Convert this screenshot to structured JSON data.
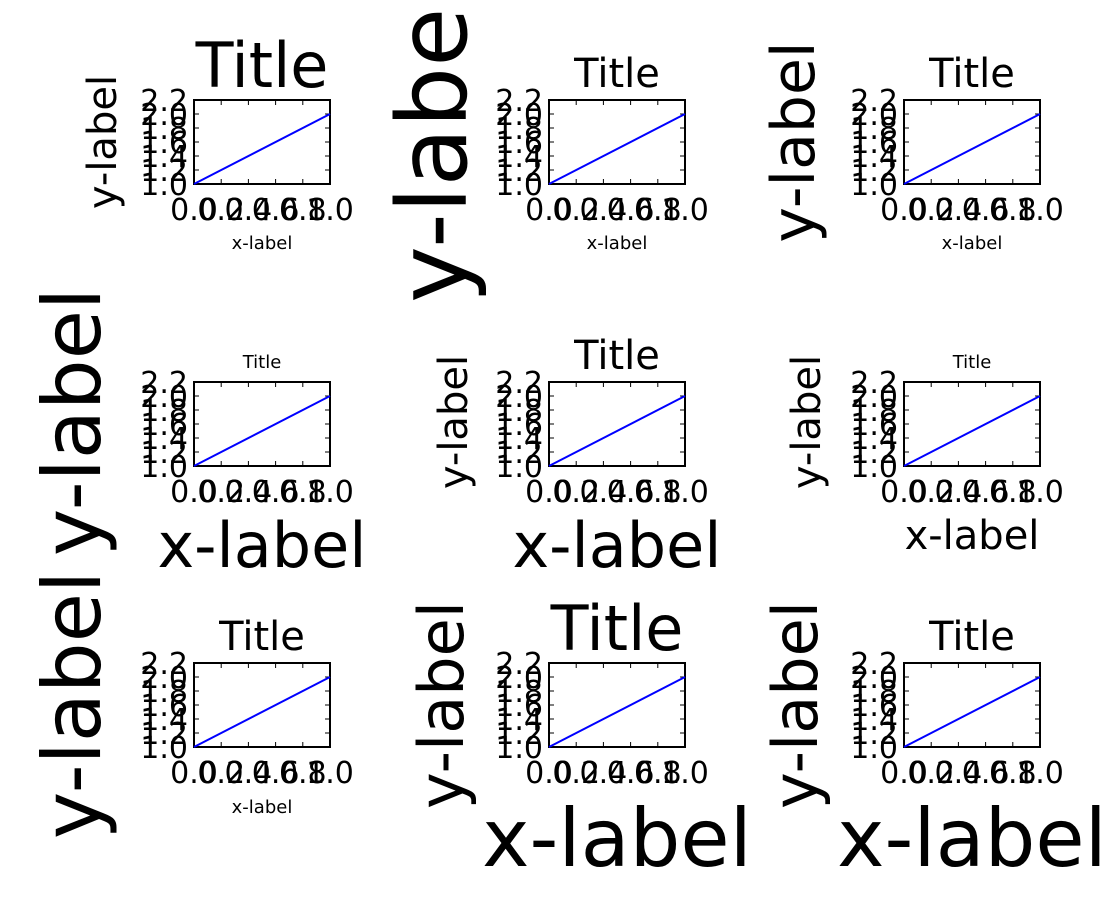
{
  "chart_data": [
    {
      "type": "line",
      "title": "Title",
      "xlabel": "x-label",
      "ylabel": "y-label",
      "xlim": [
        0.0,
        1.0
      ],
      "ylim": [
        1.0,
        2.2
      ],
      "xticks": [
        "0.0",
        "0.2",
        "0.4",
        "0.6",
        "0.8",
        "1.0"
      ],
      "yticks": [
        "1.0",
        "1.2",
        "1.4",
        "1.6",
        "1.8",
        "2.0",
        "2.2"
      ],
      "series": [
        {
          "x": [
            0,
            1
          ],
          "y": [
            1,
            2
          ],
          "color": "#0000ff"
        }
      ],
      "grid": false
    },
    {
      "type": "line",
      "title": "Title",
      "xlabel": "x-label",
      "ylabel": "y-label",
      "xlim": [
        0.0,
        1.0
      ],
      "ylim": [
        1.0,
        2.2
      ],
      "xticks": [
        "0.0",
        "0.2",
        "0.4",
        "0.6",
        "0.8",
        "1.0"
      ],
      "yticks": [
        "1.0",
        "1.2",
        "1.4",
        "1.6",
        "1.8",
        "2.0",
        "2.2"
      ],
      "series": [
        {
          "x": [
            0,
            1
          ],
          "y": [
            1,
            2
          ],
          "color": "#0000ff"
        }
      ],
      "grid": false
    },
    {
      "type": "line",
      "title": "Title",
      "xlabel": "x-label",
      "ylabel": "y-label",
      "xlim": [
        0.0,
        1.0
      ],
      "ylim": [
        1.0,
        2.2
      ],
      "xticks": [
        "0.0",
        "0.2",
        "0.4",
        "0.6",
        "0.8",
        "1.0"
      ],
      "yticks": [
        "1.0",
        "1.2",
        "1.4",
        "1.6",
        "1.8",
        "2.0",
        "2.2"
      ],
      "series": [
        {
          "x": [
            0,
            1
          ],
          "y": [
            1,
            2
          ],
          "color": "#0000ff"
        }
      ],
      "grid": false
    },
    {
      "type": "line",
      "title": "Title",
      "xlabel": "x-label",
      "ylabel": "y-label",
      "xlim": [
        0.0,
        1.0
      ],
      "ylim": [
        1.0,
        2.2
      ],
      "xticks": [
        "0.0",
        "0.2",
        "0.4",
        "0.6",
        "0.8",
        "1.0"
      ],
      "yticks": [
        "1.0",
        "1.2",
        "1.4",
        "1.6",
        "1.8",
        "2.0",
        "2.2"
      ],
      "series": [
        {
          "x": [
            0,
            1
          ],
          "y": [
            1,
            2
          ],
          "color": "#0000ff"
        }
      ],
      "grid": false
    },
    {
      "type": "line",
      "title": "Title",
      "xlabel": "x-label",
      "ylabel": "y-label",
      "xlim": [
        0.0,
        1.0
      ],
      "ylim": [
        1.0,
        2.2
      ],
      "xticks": [
        "0.0",
        "0.2",
        "0.4",
        "0.6",
        "0.8",
        "1.0"
      ],
      "yticks": [
        "1.0",
        "1.2",
        "1.4",
        "1.6",
        "1.8",
        "2.0",
        "2.2"
      ],
      "series": [
        {
          "x": [
            0,
            1
          ],
          "y": [
            1,
            2
          ],
          "color": "#0000ff"
        }
      ],
      "grid": false
    },
    {
      "type": "line",
      "title": "Title",
      "xlabel": "x-label",
      "ylabel": "y-label",
      "xlim": [
        0.0,
        1.0
      ],
      "ylim": [
        1.0,
        2.2
      ],
      "xticks": [
        "0.0",
        "0.2",
        "0.4",
        "0.6",
        "0.8",
        "1.0"
      ],
      "yticks": [
        "1.0",
        "1.2",
        "1.4",
        "1.6",
        "1.8",
        "2.0",
        "2.2"
      ],
      "series": [
        {
          "x": [
            0,
            1
          ],
          "y": [
            1,
            2
          ],
          "color": "#0000ff"
        }
      ],
      "grid": false
    },
    {
      "type": "line",
      "title": "Title",
      "xlabel": "x-label",
      "ylabel": "y-label",
      "xlim": [
        0.0,
        1.0
      ],
      "ylim": [
        1.0,
        2.2
      ],
      "xticks": [
        "0.0",
        "0.2",
        "0.4",
        "0.6",
        "0.8",
        "1.0"
      ],
      "yticks": [
        "1.0",
        "1.2",
        "1.4",
        "1.6",
        "1.8",
        "2.0",
        "2.2"
      ],
      "series": [
        {
          "x": [
            0,
            1
          ],
          "y": [
            1,
            2
          ],
          "color": "#0000ff"
        }
      ],
      "grid": false
    },
    {
      "type": "line",
      "title": "Title",
      "xlabel": "x-label",
      "ylabel": "y-label",
      "xlim": [
        0.0,
        1.0
      ],
      "ylim": [
        1.0,
        2.2
      ],
      "xticks": [
        "0.0",
        "0.2",
        "0.4",
        "0.6",
        "0.8",
        "1.0"
      ],
      "yticks": [
        "1.0",
        "1.2",
        "1.4",
        "1.6",
        "1.8",
        "2.0",
        "2.2"
      ],
      "series": [
        {
          "x": [
            0,
            1
          ],
          "y": [
            1,
            2
          ],
          "color": "#0000ff"
        }
      ],
      "grid": false
    },
    {
      "type": "line",
      "title": "Title",
      "xlabel": "x-label",
      "ylabel": "y-label",
      "xlim": [
        0.0,
        1.0
      ],
      "ylim": [
        1.0,
        2.2
      ],
      "xticks": [
        "0.0",
        "0.2",
        "0.4",
        "0.6",
        "0.8",
        "1.0"
      ],
      "yticks": [
        "1.0",
        "1.2",
        "1.4",
        "1.6",
        "1.8",
        "2.0",
        "2.2"
      ],
      "series": [
        {
          "x": [
            0,
            1
          ],
          "y": [
            1,
            2
          ],
          "color": "#0000ff"
        }
      ],
      "grid": false
    }
  ]
}
